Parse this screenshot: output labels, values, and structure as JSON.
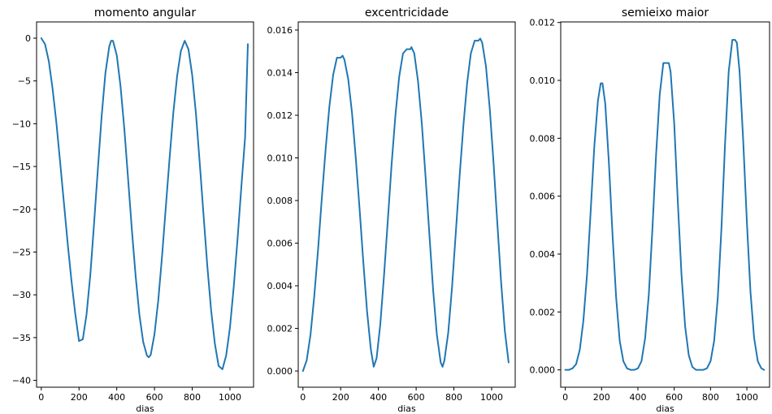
{
  "chart_data": [
    {
      "type": "line",
      "title": "momento angular",
      "xlabel": "dias",
      "ylabel": "",
      "xlim": [
        -25,
        1125
      ],
      "ylim": [
        -40.8,
        1.9
      ],
      "xticks": [
        0,
        200,
        400,
        600,
        800,
        1000
      ],
      "yticks": [
        0,
        -5,
        -10,
        -15,
        -20,
        -25,
        -30,
        -35,
        -40
      ],
      "ytick_labels": [
        "0",
        "−5",
        "−10",
        "−15",
        "−20",
        "−25",
        "−30",
        "−35",
        "−40"
      ],
      "grid": false,
      "color": "#1f77b4",
      "series": [
        {
          "x": [
            0,
            20,
            40,
            60,
            80,
            100,
            120,
            140,
            160,
            180,
            200,
            220,
            240,
            260,
            280,
            300,
            320,
            340,
            360,
            370,
            380,
            400,
            420,
            440,
            460,
            480,
            500,
            520,
            540,
            560,
            570,
            580,
            600,
            620,
            640,
            660,
            680,
            700,
            720,
            740,
            760,
            780,
            800,
            820,
            840,
            860,
            880,
            900,
            920,
            940,
            960,
            980,
            1000,
            1020,
            1040,
            1060,
            1080,
            1095
          ],
          "y": [
            0,
            -0.7,
            -2.7,
            -5.9,
            -9.9,
            -14.5,
            -19.3,
            -24.0,
            -28.4,
            -32.2,
            -35.4,
            -35.2,
            -32.3,
            -27.6,
            -21.6,
            -15.2,
            -9.1,
            -4.1,
            -1.0,
            -0.3,
            -0.3,
            -2.0,
            -5.6,
            -10.6,
            -16.4,
            -22.3,
            -27.8,
            -32.3,
            -35.5,
            -37.1,
            -37.3,
            -37.0,
            -34.6,
            -30.6,
            -25.5,
            -19.8,
            -14.0,
            -8.7,
            -4.4,
            -1.5,
            -0.3,
            -1.3,
            -4.3,
            -8.9,
            -14.6,
            -20.7,
            -26.6,
            -31.8,
            -35.7,
            -38.3,
            -38.7,
            -37.1,
            -33.8,
            -29.1,
            -23.5,
            -17.5,
            -11.6,
            -0.7
          ]
        }
      ]
    },
    {
      "type": "line",
      "title": "excentricidade",
      "xlabel": "dias",
      "ylabel": "",
      "xlim": [
        -25,
        1125
      ],
      "ylim": [
        -0.00076,
        0.01638
      ],
      "xticks": [
        0,
        200,
        400,
        600,
        800,
        1000
      ],
      "yticks": [
        0,
        0.002,
        0.004,
        0.006,
        0.008,
        0.01,
        0.012,
        0.014,
        0.016
      ],
      "ytick_labels": [
        "0.000",
        "0.002",
        "0.004",
        "0.006",
        "0.008",
        "0.010",
        "0.012",
        "0.014",
        "0.016"
      ],
      "grid": false,
      "color": "#1f77b4",
      "series": [
        {
          "x": [
            0,
            20,
            40,
            60,
            80,
            100,
            120,
            140,
            160,
            180,
            200,
            210,
            220,
            240,
            260,
            280,
            300,
            320,
            340,
            360,
            375,
            390,
            410,
            430,
            450,
            470,
            490,
            510,
            530,
            550,
            570,
            575,
            590,
            610,
            630,
            650,
            670,
            690,
            710,
            730,
            740,
            750,
            770,
            790,
            810,
            830,
            850,
            870,
            890,
            910,
            930,
            940,
            950,
            970,
            990,
            1010,
            1030,
            1050,
            1070,
            1090
          ],
          "y": [
            0,
            0.0005,
            0.0017,
            0.0035,
            0.0057,
            0.0081,
            0.0104,
            0.0124,
            0.0139,
            0.0147,
            0.0147,
            0.0148,
            0.0146,
            0.0137,
            0.0121,
            0.01,
            0.0076,
            0.0051,
            0.0028,
            0.001,
            0.0002,
            0.0006,
            0.0022,
            0.0045,
            0.0071,
            0.0097,
            0.012,
            0.0138,
            0.0149,
            0.0151,
            0.0151,
            0.0152,
            0.0149,
            0.0136,
            0.0116,
            0.0091,
            0.0064,
            0.0038,
            0.0017,
            0.0004,
            0.0002,
            0.0005,
            0.0018,
            0.0039,
            0.0065,
            0.0091,
            0.0115,
            0.0135,
            0.0149,
            0.0155,
            0.0155,
            0.0156,
            0.0154,
            0.0143,
            0.0123,
            0.0098,
            0.007,
            0.0042,
            0.0019,
            0.0004
          ]
        }
      ]
    },
    {
      "type": "line",
      "title": "semieixo maior",
      "xlabel": "dias",
      "ylabel": "",
      "xlim": [
        -25,
        1125
      ],
      "ylim": [
        -0.0006,
        0.01202
      ],
      "xticks": [
        0,
        200,
        400,
        600,
        800,
        1000
      ],
      "yticks": [
        0,
        0.002,
        0.004,
        0.006,
        0.008,
        0.01,
        0.012
      ],
      "ytick_labels": [
        "0.000",
        "0.002",
        "0.004",
        "0.006",
        "0.008",
        "0.010",
        "0.012"
      ],
      "grid": false,
      "color": "#1f77b4",
      "series": [
        {
          "x": [
            0,
            20,
            40,
            60,
            80,
            100,
            120,
            140,
            160,
            180,
            195,
            205,
            220,
            240,
            260,
            280,
            300,
            320,
            340,
            360,
            380,
            400,
            420,
            440,
            460,
            480,
            500,
            520,
            540,
            560,
            570,
            580,
            600,
            620,
            640,
            660,
            680,
            700,
            720,
            740,
            760,
            780,
            800,
            820,
            840,
            860,
            880,
            900,
            920,
            935,
            945,
            960,
            980,
            1000,
            1020,
            1040,
            1060,
            1080,
            1095
          ],
          "y": [
            0,
            0,
            5e-05,
            0.0002,
            0.0007,
            0.0017,
            0.0033,
            0.0055,
            0.0077,
            0.0093,
            0.0099,
            0.0099,
            0.0092,
            0.0072,
            0.0047,
            0.0025,
            0.001,
            0.0003,
            5e-05,
            0,
            0,
            5e-05,
            0.0003,
            0.0011,
            0.0026,
            0.0049,
            0.0074,
            0.0095,
            0.0106,
            0.0106,
            0.0106,
            0.0103,
            0.0085,
            0.0058,
            0.0033,
            0.0015,
            0.0005,
            0.0001,
            0,
            0,
            0,
            5e-05,
            0.0003,
            0.001,
            0.0025,
            0.0049,
            0.0078,
            0.0103,
            0.0114,
            0.0114,
            0.0113,
            0.0103,
            0.0079,
            0.0051,
            0.0027,
            0.0011,
            0.0003,
            5e-05,
            0
          ]
        }
      ]
    }
  ]
}
